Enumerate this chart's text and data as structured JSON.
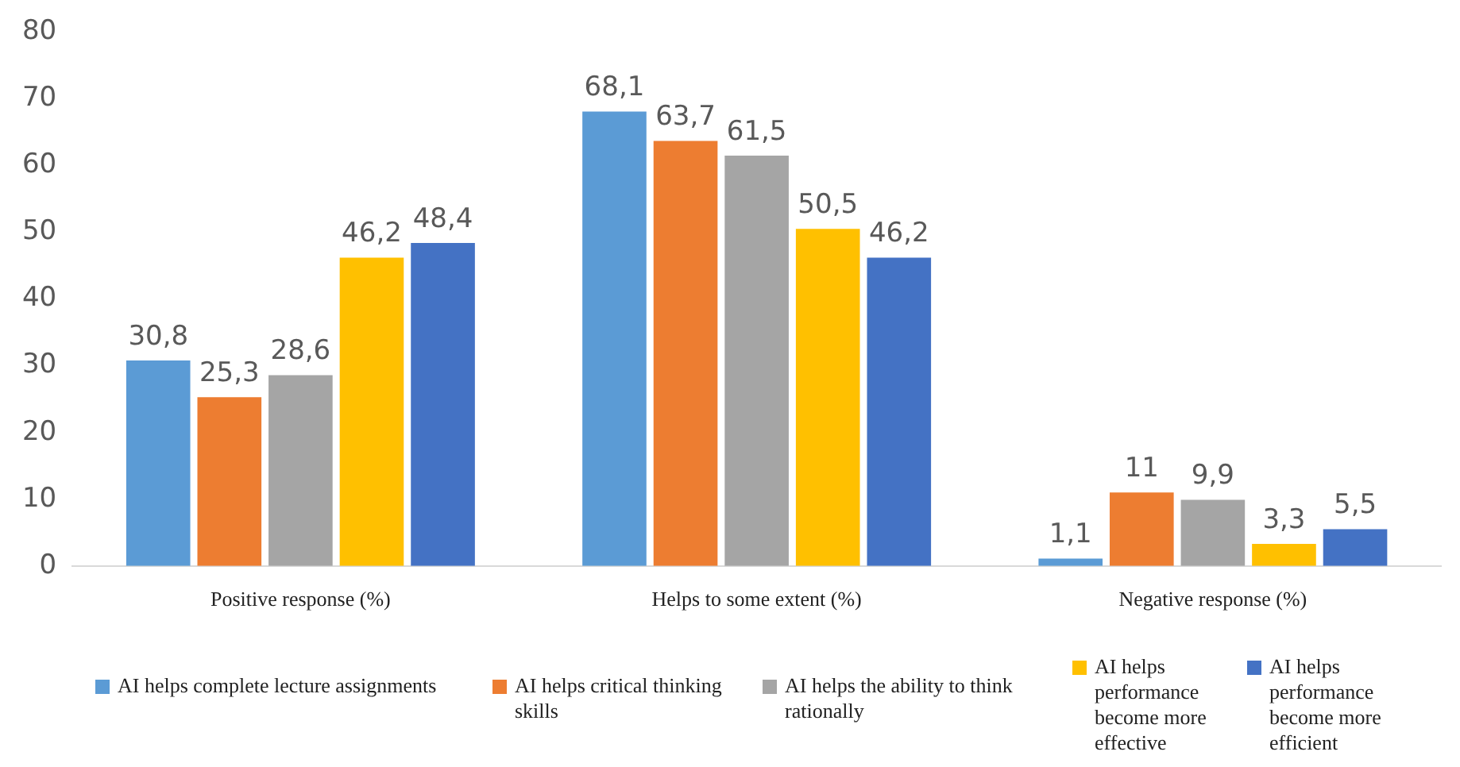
{
  "chart_data": {
    "type": "bar",
    "categories": [
      "Positive response (%)",
      "Helps to some extent (%)",
      "Negative response (%)"
    ],
    "series": [
      {
        "name": "AI helps complete lecture assignments",
        "color": "#5b9bd5",
        "values": [
          30.8,
          68.1,
          1.1
        ],
        "value_labels": [
          "30,8",
          "68,1",
          "1,1"
        ]
      },
      {
        "name": "AI helps critical thinking skills",
        "color": "#ed7d31",
        "values": [
          25.3,
          63.7,
          11
        ],
        "value_labels": [
          "25,3",
          "63,7",
          "11"
        ]
      },
      {
        "name": "AI helps the ability to think rationally",
        "color": "#a5a5a5",
        "values": [
          28.6,
          61.5,
          9.9
        ],
        "value_labels": [
          "28,6",
          "61,5",
          "9,9"
        ]
      },
      {
        "name": "AI helps performance become more effective",
        "color": "#ffc000",
        "values": [
          46.2,
          50.5,
          3.3
        ],
        "value_labels": [
          "46,2",
          "50,5",
          "3,3"
        ]
      },
      {
        "name": "AI helps performance become more efficient",
        "color": "#4472c4",
        "values": [
          48.4,
          46.2,
          5.5
        ],
        "value_labels": [
          "48,4",
          "46,2",
          "5,5"
        ]
      }
    ],
    "ylim": [
      0,
      80
    ],
    "yticks": [
      0,
      10,
      20,
      30,
      40,
      50,
      60,
      70,
      80
    ],
    "grid": false,
    "legend": "bottom"
  }
}
